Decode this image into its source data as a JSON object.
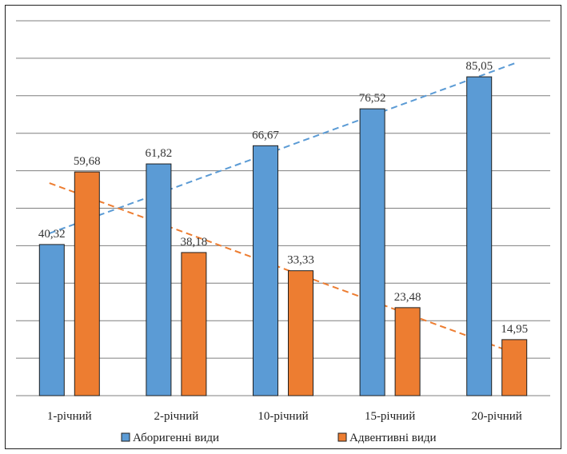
{
  "chart_data": {
    "type": "bar",
    "categories": [
      "1-річний",
      "2-річний",
      "10-річний",
      "15-річний",
      "20-річний"
    ],
    "series": [
      {
        "name": "Аборигенні види",
        "values": [
          40.32,
          61.82,
          66.67,
          76.52,
          85.05
        ],
        "color": "#5b9bd5",
        "labels": [
          "40,32",
          "61,82",
          "66,67",
          "76,52",
          "85,05"
        ]
      },
      {
        "name": "Адвентивні види",
        "values": [
          59.68,
          38.18,
          33.33,
          23.48,
          14.95
        ],
        "color": "#ed7d31",
        "labels": [
          "59,68",
          "38,18",
          "33,33",
          "23,48",
          "14,95"
        ]
      }
    ],
    "ylim": [
      0,
      100
    ],
    "grid": true,
    "trendlines": "linear, dashed",
    "legend": "bottom"
  }
}
